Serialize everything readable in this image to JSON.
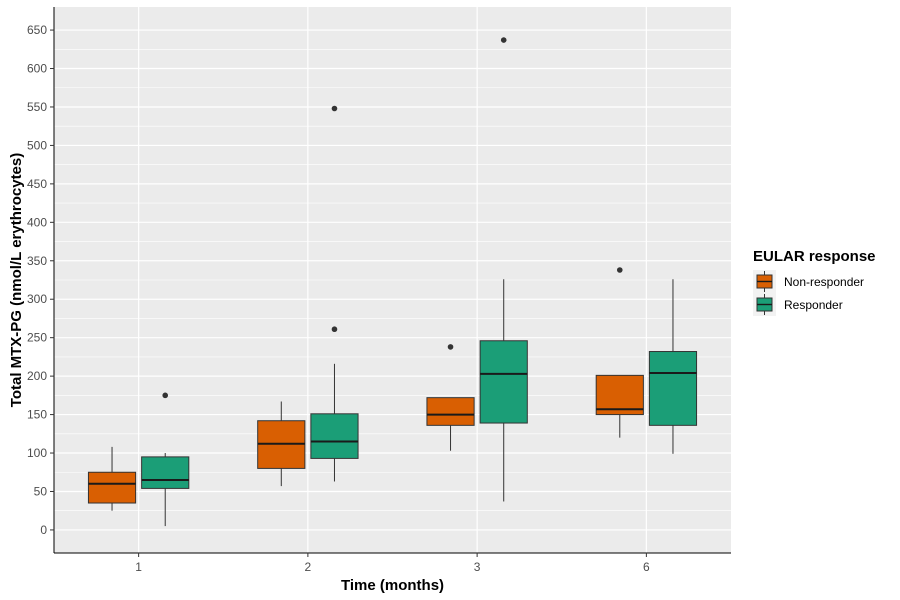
{
  "chart_data": {
    "type": "boxplot",
    "xlabel": "Time (months)",
    "ylabel": "Total MTX-PG (nmol/L erythrocytes)",
    "categories": [
      "1",
      "2",
      "3",
      "6"
    ],
    "y_ticks": [
      0,
      50,
      100,
      150,
      200,
      250,
      300,
      350,
      400,
      450,
      500,
      550,
      600,
      650
    ],
    "ylim": [
      -30,
      680
    ],
    "grid": true,
    "legend": {
      "title": "EULAR response",
      "position": "right"
    },
    "series": [
      {
        "name": "Non-responder",
        "color": "#d95f02",
        "boxes": [
          {
            "category": "1",
            "whisker_low": 25,
            "q1": 35,
            "median": 60,
            "q3": 75,
            "whisker_high": 108,
            "outliers": []
          },
          {
            "category": "2",
            "whisker_low": 57,
            "q1": 80,
            "median": 112,
            "q3": 142,
            "whisker_high": 167,
            "outliers": []
          },
          {
            "category": "3",
            "whisker_low": 103,
            "q1": 136,
            "median": 150,
            "q3": 172,
            "whisker_high": 172,
            "outliers": [
              238
            ]
          },
          {
            "category": "6",
            "whisker_low": 120,
            "q1": 150,
            "median": 157,
            "q3": 201,
            "whisker_high": 201,
            "outliers": [
              338
            ]
          }
        ]
      },
      {
        "name": "Responder",
        "color": "#1b9e77",
        "boxes": [
          {
            "category": "1",
            "whisker_low": 5,
            "q1": 54,
            "median": 65,
            "q3": 95,
            "whisker_high": 100,
            "outliers": [
              175
            ]
          },
          {
            "category": "2",
            "whisker_low": 63,
            "q1": 93,
            "median": 115,
            "q3": 151,
            "whisker_high": 216,
            "outliers": [
              261,
              548
            ]
          },
          {
            "category": "3",
            "whisker_low": 37,
            "q1": 139,
            "median": 203,
            "q3": 246,
            "whisker_high": 326,
            "outliers": [
              637
            ]
          },
          {
            "category": "6",
            "whisker_low": 99,
            "q1": 136,
            "median": 204,
            "q3": 232,
            "whisker_high": 326,
            "outliers": []
          }
        ]
      }
    ]
  }
}
